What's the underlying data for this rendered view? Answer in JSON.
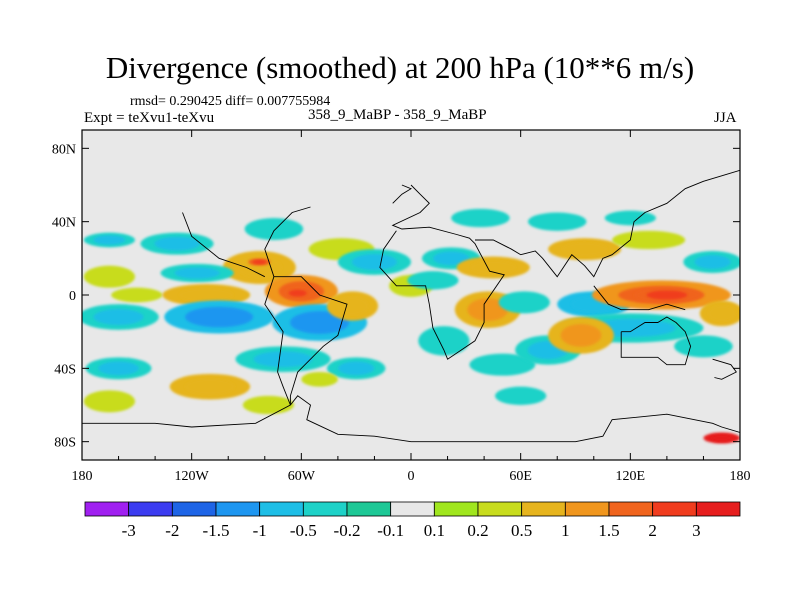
{
  "chart_data": {
    "type": "heatmap",
    "title": "Divergence (smoothed) at 200 hPa (10**6 m/s)",
    "stats": "rmsd= 0.290425 diff= 0.007755984",
    "expt": "Expt = teXvu1-teXvu",
    "subtitle": "358_9_MaBP - 358_9_MaBP",
    "season": "JJA",
    "x_ticks": [
      "180",
      "120W",
      "60W",
      "0",
      "60E",
      "120E",
      "180"
    ],
    "y_ticks": [
      "80N",
      "40N",
      "0",
      "40S",
      "80S"
    ],
    "xlim": [
      -180,
      180
    ],
    "ylim": [
      -90,
      90
    ],
    "colorbar": {
      "labels": [
        "-3",
        "-2",
        "-1.5",
        "-1",
        "-0.5",
        "-0.2",
        "-0.1",
        "0.1",
        "0.2",
        "0.5",
        "1",
        "1.5",
        "2",
        "3"
      ],
      "colors": [
        "#a020f0",
        "#3c3cf0",
        "#1e64e6",
        "#1e96f0",
        "#1ebee6",
        "#1ed2c8",
        "#1ec896",
        "#e8e8e8",
        "#a0e61e",
        "#c8dc1e",
        "#e6b41e",
        "#f0961e",
        "#f0641e",
        "#f03c1e",
        "#e61e1e"
      ]
    },
    "blobs": [
      {
        "lon": -165,
        "lat": 30,
        "rx": 14,
        "ry": 4,
        "v": -0.5
      },
      {
        "lon": -165,
        "lat": 10,
        "rx": 14,
        "ry": 6,
        "v": 0.3
      },
      {
        "lon": -150,
        "lat": 0,
        "rx": 14,
        "ry": 4,
        "v": 0.3
      },
      {
        "lon": -160,
        "lat": -12,
        "rx": 22,
        "ry": 7,
        "v": -0.5
      },
      {
        "lon": -160,
        "lat": -40,
        "rx": 18,
        "ry": 6,
        "v": -0.5
      },
      {
        "lon": -165,
        "lat": -58,
        "rx": 14,
        "ry": 6,
        "v": 0.3
      },
      {
        "lon": -110,
        "lat": -50,
        "rx": 22,
        "ry": 7,
        "v": 0.5
      },
      {
        "lon": -128,
        "lat": 28,
        "rx": 20,
        "ry": 6,
        "v": -0.5
      },
      {
        "lon": -75,
        "lat": 36,
        "rx": 16,
        "ry": 6,
        "v": -0.3
      },
      {
        "lon": -83,
        "lat": 15,
        "rx": 20,
        "ry": 9,
        "v": 0.6
      },
      {
        "lon": -83,
        "lat": 18,
        "rx": 6,
        "ry": 2,
        "v": 1.6
      },
      {
        "lon": -117,
        "lat": 12,
        "rx": 20,
        "ry": 5,
        "v": -0.5
      },
      {
        "lon": -112,
        "lat": 0,
        "rx": 24,
        "ry": 6,
        "v": 0.6
      },
      {
        "lon": -60,
        "lat": 2,
        "rx": 20,
        "ry": 9,
        "v": 1.0
      },
      {
        "lon": -62,
        "lat": 1,
        "rx": 8,
        "ry": 3,
        "v": 1.6
      },
      {
        "lon": -105,
        "lat": -12,
        "rx": 30,
        "ry": 9,
        "v": -0.7
      },
      {
        "lon": -50,
        "lat": -15,
        "rx": 26,
        "ry": 10,
        "v": -0.7
      },
      {
        "lon": -32,
        "lat": -6,
        "rx": 14,
        "ry": 8,
        "v": 0.6
      },
      {
        "lon": -70,
        "lat": -35,
        "rx": 26,
        "ry": 7,
        "v": -0.5
      },
      {
        "lon": -30,
        "lat": -40,
        "rx": 16,
        "ry": 6,
        "v": -0.5
      },
      {
        "lon": -78,
        "lat": -60,
        "rx": 14,
        "ry": 5,
        "v": 0.4
      },
      {
        "lon": -38,
        "lat": 25,
        "rx": 18,
        "ry": 6,
        "v": 0.4
      },
      {
        "lon": -20,
        "lat": 18,
        "rx": 20,
        "ry": 7,
        "v": -0.5
      },
      {
        "lon": 0,
        "lat": 5,
        "rx": 12,
        "ry": 6,
        "v": 0.4
      },
      {
        "lon": 38,
        "lat": 42,
        "rx": 16,
        "ry": 5,
        "v": -0.3
      },
      {
        "lon": 22,
        "lat": 20,
        "rx": 16,
        "ry": 6,
        "v": -0.5
      },
      {
        "lon": 45,
        "lat": 15,
        "rx": 20,
        "ry": 6,
        "v": 0.6
      },
      {
        "lon": 12,
        "lat": 8,
        "rx": 14,
        "ry": 5,
        "v": -0.4
      },
      {
        "lon": 42,
        "lat": -8,
        "rx": 18,
        "ry": 10,
        "v": 0.8
      },
      {
        "lon": 18,
        "lat": -25,
        "rx": 14,
        "ry": 8,
        "v": -0.4
      },
      {
        "lon": 50,
        "lat": -38,
        "rx": 18,
        "ry": 6,
        "v": -0.4
      },
      {
        "lon": 75,
        "lat": -30,
        "rx": 18,
        "ry": 8,
        "v": -0.5
      },
      {
        "lon": 60,
        "lat": -55,
        "rx": 14,
        "ry": 5,
        "v": -0.3
      },
      {
        "lon": 80,
        "lat": 40,
        "rx": 16,
        "ry": 5,
        "v": -0.3
      },
      {
        "lon": 95,
        "lat": 25,
        "rx": 20,
        "ry": 6,
        "v": 0.5
      },
      {
        "lon": 100,
        "lat": -5,
        "rx": 20,
        "ry": 7,
        "v": -0.6
      },
      {
        "lon": 137,
        "lat": 0,
        "rx": 38,
        "ry": 8,
        "v": 1.0
      },
      {
        "lon": 140,
        "lat": 0,
        "rx": 18,
        "ry": 4,
        "v": 1.6
      },
      {
        "lon": 165,
        "lat": 18,
        "rx": 16,
        "ry": 6,
        "v": -0.5
      },
      {
        "lon": 120,
        "lat": -18,
        "rx": 40,
        "ry": 8,
        "v": -0.5
      },
      {
        "lon": 160,
        "lat": -28,
        "rx": 16,
        "ry": 6,
        "v": -0.4
      },
      {
        "lon": 93,
        "lat": -22,
        "rx": 18,
        "ry": 10,
        "v": 0.9
      },
      {
        "lon": 62,
        "lat": -4,
        "rx": 14,
        "ry": 6,
        "v": -0.4
      },
      {
        "lon": 170,
        "lat": -10,
        "rx": 12,
        "ry": 7,
        "v": 0.5
      },
      {
        "lon": 130,
        "lat": 30,
        "rx": 20,
        "ry": 5,
        "v": 0.3
      },
      {
        "lon": 120,
        "lat": 42,
        "rx": 14,
        "ry": 4,
        "v": -0.3
      },
      {
        "lon": 170,
        "lat": -78,
        "rx": 10,
        "ry": 3,
        "v": 3.0
      },
      {
        "lon": -50,
        "lat": -46,
        "rx": 10,
        "ry": 4,
        "v": 0.3
      }
    ],
    "coastlines": [
      [
        [
          -180,
          -70
        ],
        [
          -140,
          -70
        ],
        [
          -120,
          -72
        ],
        [
          -85,
          -70
        ],
        [
          -66,
          -60
        ],
        [
          -62,
          -55
        ],
        [
          -55,
          -60
        ],
        [
          -57,
          -68
        ],
        [
          -40,
          -76
        ],
        [
          -20,
          -77
        ],
        [
          0,
          -80
        ],
        [
          20,
          -80
        ],
        [
          50,
          -80
        ],
        [
          90,
          -80
        ],
        [
          105,
          -77
        ],
        [
          110,
          -68
        ],
        [
          140,
          -65
        ],
        [
          165,
          -70
        ],
        [
          170,
          -72
        ],
        [
          180,
          -75
        ]
      ],
      [
        [
          -66,
          -60
        ],
        [
          -70,
          -50
        ],
        [
          -73,
          -42
        ],
        [
          -70,
          -20
        ],
        [
          -80,
          -5
        ],
        [
          -75,
          10
        ],
        [
          -60,
          10
        ],
        [
          -50,
          0
        ],
        [
          -35,
          -5
        ],
        [
          -40,
          -22
        ],
        [
          -48,
          -28
        ],
        [
          -58,
          -38
        ],
        [
          -62,
          -42
        ],
        [
          -66,
          -55
        ],
        [
          -66,
          -60
        ]
      ],
      [
        [
          -80,
          10
        ],
        [
          -90,
          15
        ],
        [
          -105,
          20
        ],
        [
          -120,
          32
        ],
        [
          -125,
          45
        ]
      ],
      [
        [
          -75,
          10
        ],
        [
          -80,
          25
        ],
        [
          -75,
          35
        ],
        [
          -65,
          45
        ],
        [
          -55,
          48
        ]
      ],
      [
        [
          0,
          60
        ],
        [
          5,
          55
        ],
        [
          10,
          50
        ],
        [
          5,
          45
        ],
        [
          -10,
          38
        ],
        [
          -5,
          36
        ],
        [
          10,
          37
        ],
        [
          25,
          33
        ],
        [
          32,
          31
        ],
        [
          35,
          28
        ],
        [
          43,
          13
        ],
        [
          51,
          11
        ],
        [
          40,
          -5
        ],
        [
          40,
          -15
        ],
        [
          35,
          -25
        ],
        [
          20,
          -35
        ],
        [
          18,
          -30
        ],
        [
          12,
          -18
        ],
        [
          10,
          -5
        ],
        [
          8,
          5
        ],
        [
          -8,
          5
        ],
        [
          -17,
          15
        ],
        [
          -15,
          25
        ],
        [
          -8,
          35
        ]
      ],
      [
        [
          35,
          30
        ],
        [
          45,
          30
        ],
        [
          55,
          25
        ],
        [
          60,
          22
        ],
        [
          68,
          24
        ],
        [
          72,
          20
        ],
        [
          80,
          10
        ],
        [
          88,
          22
        ],
        [
          95,
          16
        ],
        [
          100,
          10
        ],
        [
          105,
          20
        ],
        [
          110,
          22
        ],
        [
          120,
          30
        ],
        [
          122,
          40
        ],
        [
          128,
          45
        ],
        [
          140,
          50
        ],
        [
          150,
          58
        ],
        [
          160,
          62
        ],
        [
          170,
          65
        ],
        [
          180,
          68
        ]
      ],
      [
        [
          100,
          5
        ],
        [
          108,
          -5
        ],
        [
          115,
          -8
        ],
        [
          130,
          -8
        ],
        [
          140,
          -5
        ],
        [
          150,
          -8
        ]
      ],
      [
        [
          115,
          -20
        ],
        [
          115,
          -34
        ],
        [
          125,
          -34
        ],
        [
          135,
          -34
        ],
        [
          140,
          -38
        ],
        [
          150,
          -38
        ],
        [
          153,
          -28
        ],
        [
          150,
          -20
        ],
        [
          145,
          -15
        ],
        [
          140,
          -12
        ],
        [
          135,
          -15
        ],
        [
          128,
          -15
        ],
        [
          120,
          -20
        ],
        [
          115,
          -20
        ]
      ],
      [
        [
          165,
          -35
        ],
        [
          175,
          -38
        ],
        [
          178,
          -42
        ],
        [
          170,
          -46
        ],
        [
          166,
          -45
        ]
      ],
      [
        [
          -10,
          50
        ],
        [
          -5,
          55
        ],
        [
          0,
          58
        ],
        [
          -5,
          60
        ]
      ]
    ]
  }
}
